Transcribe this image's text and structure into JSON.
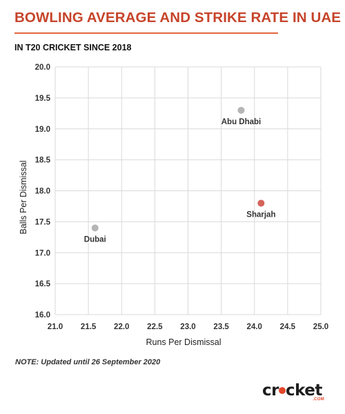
{
  "header": {
    "title": "BOWLING AVERAGE AND STRIKE RATE IN UAE",
    "subtitle": "IN T20 CRICKET SINCE 2018"
  },
  "note": "NOTE: Updated until 26 September 2020",
  "logo": {
    "word_pre": "cr",
    "word_post": "cket",
    "suffix": ".COM"
  },
  "colors": {
    "title": "#c6442a",
    "rule": "#e3643f",
    "grey_point": "#b5b5b5",
    "highlight_point": "#d4645b",
    "grid": "#d9d9d9"
  },
  "chart_data": {
    "type": "scatter",
    "title": "BOWLING AVERAGE AND STRIKE RATE IN UAE",
    "subtitle": "IN T20 CRICKET SINCE 2018",
    "xlabel": "Runs Per Dismissal",
    "ylabel": "Balls Per Dismissal",
    "xlim": [
      21.0,
      25.0
    ],
    "ylim": [
      16.0,
      20.0
    ],
    "xticks": [
      "21.0",
      "21.5",
      "22.0",
      "22.5",
      "23.0",
      "23.5",
      "24.0",
      "24.5",
      "25.0"
    ],
    "yticks": [
      "16.0",
      "16.5",
      "17.0",
      "17.5",
      "18.0",
      "18.5",
      "19.0",
      "19.5",
      "20.0"
    ],
    "grid": true,
    "points": [
      {
        "label": "Abu Dhabi",
        "x": 23.8,
        "y": 19.3,
        "color": "#b5b5b5"
      },
      {
        "label": "Sharjah",
        "x": 24.1,
        "y": 17.8,
        "color": "#d4645b"
      },
      {
        "label": "Dubai",
        "x": 21.6,
        "y": 17.4,
        "color": "#b5b5b5"
      }
    ]
  }
}
